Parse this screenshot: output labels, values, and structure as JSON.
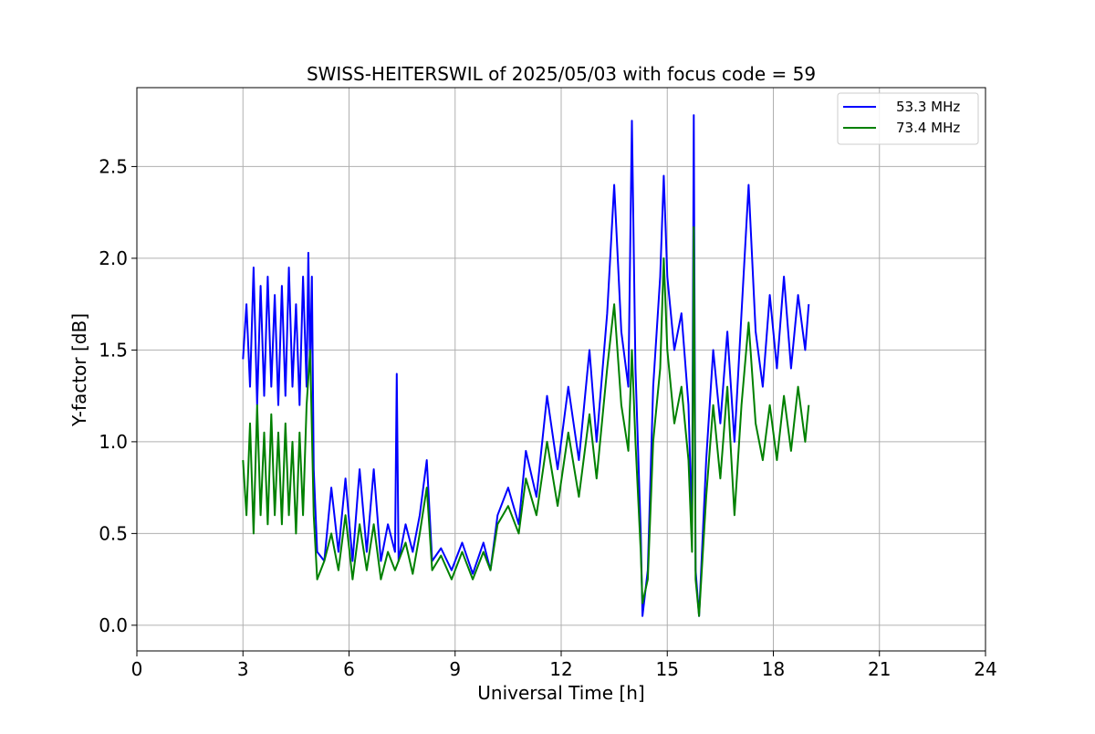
{
  "chart_data": {
    "type": "line",
    "title": "SWISS-HEITERSWIL of 2025/05/03 with focus code = 59",
    "xlabel": "Universal Time [h]",
    "ylabel": "Y-factor [dB]",
    "xlim": [
      0,
      24
    ],
    "ylim": [
      -0.14,
      2.93
    ],
    "xticks": [
      0,
      3,
      6,
      9,
      12,
      15,
      18,
      21,
      24
    ],
    "yticks": [
      0.0,
      0.5,
      1.0,
      1.5,
      2.0,
      2.5
    ],
    "xtick_labels": [
      "0",
      "3",
      "6",
      "9",
      "12",
      "15",
      "18",
      "21",
      "24"
    ],
    "ytick_labels": [
      "0.0",
      "0.5",
      "1.0",
      "1.5",
      "2.0",
      "2.5"
    ],
    "grid": true,
    "legend_position": "top-right",
    "series": [
      {
        "name": "53.3 MHz",
        "color": "#0000ff",
        "points": [
          [
            3.0,
            1.45
          ],
          [
            3.1,
            1.75
          ],
          [
            3.2,
            1.3
          ],
          [
            3.3,
            1.95
          ],
          [
            3.4,
            1.2
          ],
          [
            3.5,
            1.85
          ],
          [
            3.6,
            1.25
          ],
          [
            3.7,
            1.9
          ],
          [
            3.8,
            1.3
          ],
          [
            3.9,
            1.8
          ],
          [
            4.0,
            1.2
          ],
          [
            4.1,
            1.85
          ],
          [
            4.2,
            1.25
          ],
          [
            4.3,
            1.95
          ],
          [
            4.4,
            1.3
          ],
          [
            4.5,
            1.75
          ],
          [
            4.6,
            1.2
          ],
          [
            4.7,
            1.9
          ],
          [
            4.8,
            1.3
          ],
          [
            4.85,
            2.03
          ],
          [
            4.9,
            1.4
          ],
          [
            4.95,
            1.9
          ],
          [
            5.0,
            0.85
          ],
          [
            5.1,
            0.4
          ],
          [
            5.3,
            0.35
          ],
          [
            5.5,
            0.75
          ],
          [
            5.7,
            0.4
          ],
          [
            5.9,
            0.8
          ],
          [
            6.1,
            0.35
          ],
          [
            6.3,
            0.85
          ],
          [
            6.5,
            0.4
          ],
          [
            6.7,
            0.85
          ],
          [
            6.9,
            0.35
          ],
          [
            7.1,
            0.55
          ],
          [
            7.3,
            0.4
          ],
          [
            7.35,
            1.37
          ],
          [
            7.4,
            0.35
          ],
          [
            7.6,
            0.55
          ],
          [
            7.8,
            0.4
          ],
          [
            8.0,
            0.6
          ],
          [
            8.2,
            0.9
          ],
          [
            8.35,
            0.35
          ],
          [
            8.6,
            0.42
          ],
          [
            8.9,
            0.3
          ],
          [
            9.2,
            0.45
          ],
          [
            9.5,
            0.28
          ],
          [
            9.8,
            0.45
          ],
          [
            10.0,
            0.3
          ],
          [
            10.2,
            0.6
          ],
          [
            10.5,
            0.75
          ],
          [
            10.8,
            0.55
          ],
          [
            11.0,
            0.95
          ],
          [
            11.3,
            0.7
          ],
          [
            11.6,
            1.25
          ],
          [
            11.9,
            0.85
          ],
          [
            12.2,
            1.3
          ],
          [
            12.5,
            0.9
          ],
          [
            12.8,
            1.5
          ],
          [
            13.0,
            1.0
          ],
          [
            13.3,
            1.7
          ],
          [
            13.5,
            2.4
          ],
          [
            13.7,
            1.6
          ],
          [
            13.9,
            1.3
          ],
          [
            14.0,
            2.75
          ],
          [
            14.1,
            1.4
          ],
          [
            14.25,
            0.5
          ],
          [
            14.3,
            0.05
          ],
          [
            14.45,
            0.3
          ],
          [
            14.6,
            1.3
          ],
          [
            14.8,
            1.9
          ],
          [
            14.9,
            2.45
          ],
          [
            15.0,
            1.9
          ],
          [
            15.2,
            1.5
          ],
          [
            15.4,
            1.7
          ],
          [
            15.6,
            1.2
          ],
          [
            15.7,
            0.5
          ],
          [
            15.75,
            2.78
          ],
          [
            15.8,
            0.3
          ],
          [
            15.9,
            0.05
          ],
          [
            16.1,
            0.9
          ],
          [
            16.3,
            1.5
          ],
          [
            16.5,
            1.1
          ],
          [
            16.7,
            1.6
          ],
          [
            16.9,
            1.0
          ],
          [
            17.1,
            1.7
          ],
          [
            17.3,
            2.4
          ],
          [
            17.5,
            1.6
          ],
          [
            17.7,
            1.3
          ],
          [
            17.9,
            1.8
          ],
          [
            18.1,
            1.4
          ],
          [
            18.3,
            1.9
          ],
          [
            18.5,
            1.4
          ],
          [
            18.7,
            1.8
          ],
          [
            18.9,
            1.5
          ],
          [
            19.0,
            1.75
          ]
        ]
      },
      {
        "name": "73.4 MHz",
        "color": "#008000",
        "points": [
          [
            3.0,
            0.9
          ],
          [
            3.1,
            0.6
          ],
          [
            3.2,
            1.1
          ],
          [
            3.3,
            0.5
          ],
          [
            3.4,
            1.2
          ],
          [
            3.5,
            0.6
          ],
          [
            3.6,
            1.05
          ],
          [
            3.7,
            0.55
          ],
          [
            3.8,
            1.15
          ],
          [
            3.9,
            0.6
          ],
          [
            4.0,
            1.05
          ],
          [
            4.1,
            0.55
          ],
          [
            4.2,
            1.1
          ],
          [
            4.3,
            0.6
          ],
          [
            4.4,
            1.0
          ],
          [
            4.5,
            0.5
          ],
          [
            4.6,
            1.05
          ],
          [
            4.7,
            0.6
          ],
          [
            4.8,
            1.2
          ],
          [
            4.9,
            1.5
          ],
          [
            5.0,
            0.6
          ],
          [
            5.1,
            0.25
          ],
          [
            5.3,
            0.35
          ],
          [
            5.5,
            0.5
          ],
          [
            5.7,
            0.3
          ],
          [
            5.9,
            0.6
          ],
          [
            6.1,
            0.25
          ],
          [
            6.3,
            0.55
          ],
          [
            6.5,
            0.3
          ],
          [
            6.7,
            0.55
          ],
          [
            6.9,
            0.25
          ],
          [
            7.1,
            0.4
          ],
          [
            7.3,
            0.3
          ],
          [
            7.6,
            0.45
          ],
          [
            7.8,
            0.28
          ],
          [
            8.0,
            0.5
          ],
          [
            8.2,
            0.75
          ],
          [
            8.35,
            0.3
          ],
          [
            8.6,
            0.38
          ],
          [
            8.9,
            0.25
          ],
          [
            9.2,
            0.4
          ],
          [
            9.5,
            0.25
          ],
          [
            9.8,
            0.4
          ],
          [
            10.0,
            0.3
          ],
          [
            10.2,
            0.55
          ],
          [
            10.5,
            0.65
          ],
          [
            10.8,
            0.5
          ],
          [
            11.0,
            0.8
          ],
          [
            11.3,
            0.6
          ],
          [
            11.6,
            1.0
          ],
          [
            11.9,
            0.65
          ],
          [
            12.2,
            1.05
          ],
          [
            12.5,
            0.7
          ],
          [
            12.8,
            1.15
          ],
          [
            13.0,
            0.8
          ],
          [
            13.3,
            1.4
          ],
          [
            13.5,
            1.75
          ],
          [
            13.7,
            1.2
          ],
          [
            13.9,
            0.95
          ],
          [
            14.0,
            1.5
          ],
          [
            14.1,
            1.0
          ],
          [
            14.25,
            0.4
          ],
          [
            14.3,
            0.12
          ],
          [
            14.45,
            0.25
          ],
          [
            14.6,
            1.0
          ],
          [
            14.8,
            1.4
          ],
          [
            14.9,
            2.0
          ],
          [
            15.0,
            1.5
          ],
          [
            15.2,
            1.1
          ],
          [
            15.4,
            1.3
          ],
          [
            15.6,
            0.9
          ],
          [
            15.7,
            0.4
          ],
          [
            15.75,
            2.17
          ],
          [
            15.8,
            0.25
          ],
          [
            15.9,
            0.05
          ],
          [
            16.1,
            0.7
          ],
          [
            16.3,
            1.2
          ],
          [
            16.5,
            0.8
          ],
          [
            16.7,
            1.3
          ],
          [
            16.9,
            0.6
          ],
          [
            17.1,
            1.2
          ],
          [
            17.3,
            1.65
          ],
          [
            17.5,
            1.1
          ],
          [
            17.7,
            0.9
          ],
          [
            17.9,
            1.2
          ],
          [
            18.1,
            0.9
          ],
          [
            18.3,
            1.25
          ],
          [
            18.5,
            0.95
          ],
          [
            18.7,
            1.3
          ],
          [
            18.9,
            1.0
          ],
          [
            19.0,
            1.2
          ]
        ]
      }
    ]
  }
}
